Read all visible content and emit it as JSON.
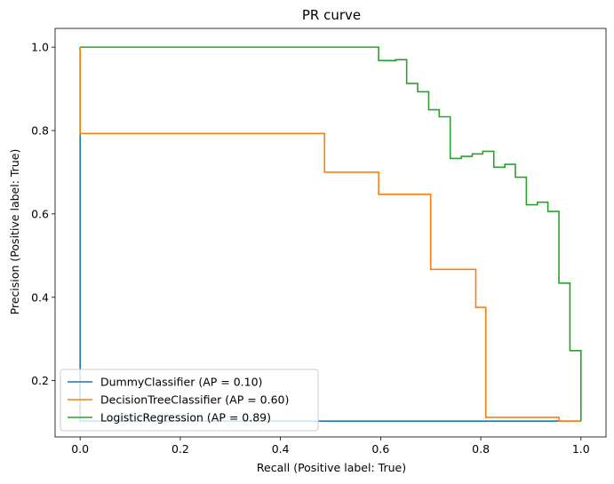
{
  "chart_data": {
    "type": "line",
    "title": "PR curve",
    "xlabel": "Recall (Positive label: True)",
    "ylabel": "Precision (Positive label: True)",
    "xlim": [
      -0.05,
      1.05
    ],
    "ylim": [
      0.065,
      1.045
    ],
    "xticks": [
      0.0,
      0.2,
      0.4,
      0.6,
      0.8,
      1.0
    ],
    "yticks": [
      0.2,
      0.4,
      0.6,
      0.8,
      1.0
    ],
    "grid": false,
    "legend_position": "lower-left",
    "series": [
      {
        "name": "DummyClassifier (AP = 0.10)",
        "color": "#1f77b4",
        "points": [
          [
            1.0,
            0.103
          ],
          [
            0.0,
            0.103
          ],
          [
            0.0,
            1.0
          ]
        ]
      },
      {
        "name": "DecisionTreeClassifier (AP = 0.60)",
        "color": "#ff7f0e",
        "points": [
          [
            1.0,
            0.103
          ],
          [
            0.956,
            0.103
          ],
          [
            0.956,
            0.112
          ],
          [
            0.81,
            0.112
          ],
          [
            0.81,
            0.376
          ],
          [
            0.79,
            0.376
          ],
          [
            0.79,
            0.467
          ],
          [
            0.7,
            0.467
          ],
          [
            0.7,
            0.647
          ],
          [
            0.596,
            0.647
          ],
          [
            0.596,
            0.7
          ],
          [
            0.488,
            0.7
          ],
          [
            0.488,
            0.793
          ],
          [
            0.0,
            0.793
          ],
          [
            0.0,
            1.0
          ]
        ]
      },
      {
        "name": "LogisticRegression (AP = 0.89)",
        "color": "#2ca02c",
        "points": [
          [
            1.0,
            0.103
          ],
          [
            1.0,
            0.272
          ],
          [
            0.978,
            0.272
          ],
          [
            0.978,
            0.434
          ],
          [
            0.956,
            0.434
          ],
          [
            0.956,
            0.606
          ],
          [
            0.934,
            0.606
          ],
          [
            0.934,
            0.628
          ],
          [
            0.913,
            0.628
          ],
          [
            0.913,
            0.622
          ],
          [
            0.891,
            0.622
          ],
          [
            0.891,
            0.688
          ],
          [
            0.869,
            0.688
          ],
          [
            0.869,
            0.719
          ],
          [
            0.848,
            0.719
          ],
          [
            0.848,
            0.712
          ],
          [
            0.826,
            0.712
          ],
          [
            0.826,
            0.75
          ],
          [
            0.804,
            0.75
          ],
          [
            0.804,
            0.744
          ],
          [
            0.783,
            0.744
          ],
          [
            0.783,
            0.738
          ],
          [
            0.761,
            0.738
          ],
          [
            0.761,
            0.733
          ],
          [
            0.739,
            0.733
          ],
          [
            0.739,
            0.833
          ],
          [
            0.717,
            0.833
          ],
          [
            0.717,
            0.85
          ],
          [
            0.696,
            0.85
          ],
          [
            0.696,
            0.893
          ],
          [
            0.674,
            0.893
          ],
          [
            0.674,
            0.913
          ],
          [
            0.652,
            0.913
          ],
          [
            0.652,
            0.97
          ],
          [
            0.63,
            0.97
          ],
          [
            0.63,
            0.968
          ],
          [
            0.596,
            0.968
          ],
          [
            0.596,
            1.0
          ],
          [
            0.0,
            1.0
          ]
        ]
      }
    ]
  }
}
